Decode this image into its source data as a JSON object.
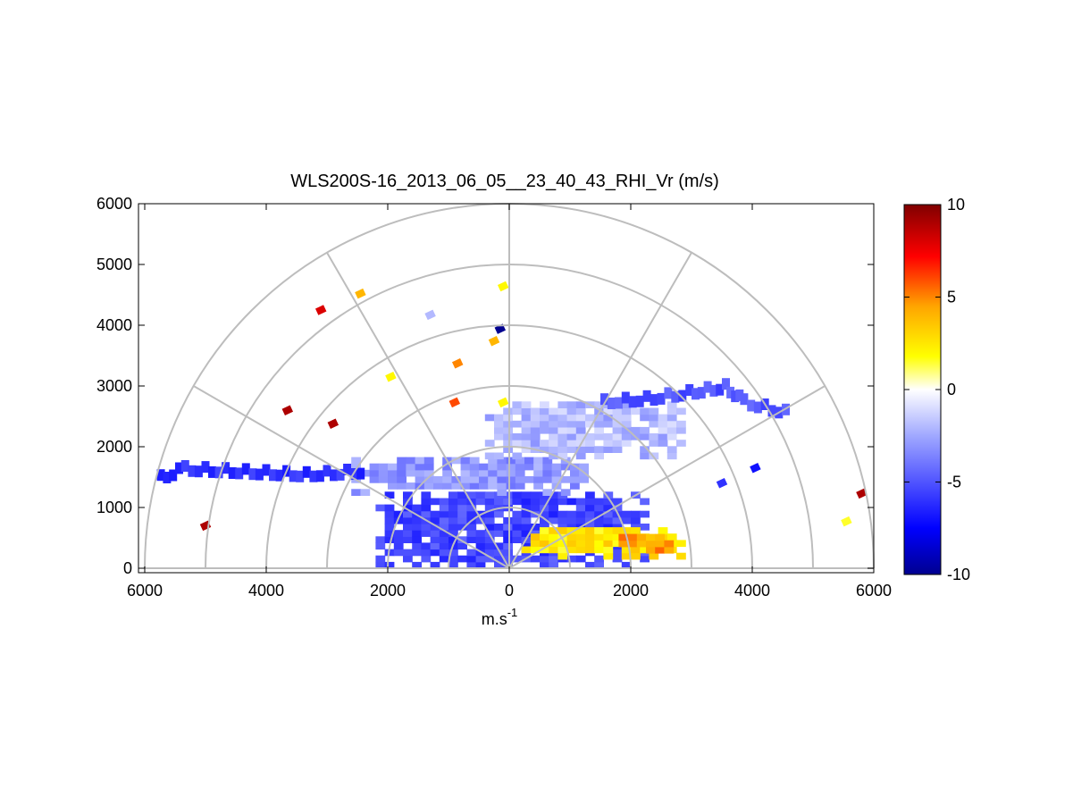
{
  "chart_data": {
    "type": "heatmap",
    "projection": "polar-half (RHI scan)",
    "title": "WLS200S-16_2013_06_05__23_40_43_RHI_Vr (m/s)",
    "xlabel": "m.s",
    "xlabel_superscript": "-1",
    "ylabel": "",
    "xlim": [
      -6000,
      6000
    ],
    "ylim": [
      0,
      6000
    ],
    "x_tick_labels": [
      "6000",
      "4000",
      "2000",
      "0",
      "2000",
      "4000",
      "6000"
    ],
    "x_tick_values": [
      -6000,
      -4000,
      -2000,
      0,
      2000,
      4000,
      6000
    ],
    "y_tick_labels": [
      "0",
      "1000",
      "2000",
      "3000",
      "4000",
      "5000",
      "6000"
    ],
    "y_tick_values": [
      0,
      1000,
      2000,
      3000,
      4000,
      5000,
      6000
    ],
    "polar_grid": {
      "range_rings": [
        1000,
        2000,
        3000,
        4000,
        5000,
        6000
      ],
      "spokes_deg": [
        0,
        30,
        60,
        90,
        120,
        150,
        180
      ]
    },
    "grid": true,
    "colorbar": {
      "min": -10,
      "max": 10,
      "tick_labels": [
        "10",
        "5",
        "0",
        "-5",
        "-10"
      ],
      "tick_values": [
        10,
        5,
        0,
        -5,
        -10
      ],
      "colormap": [
        "#00008f",
        "#0000ff",
        "#a0a8ff",
        "#ffffff",
        "#ffff00",
        "#ffa500",
        "#ff0000",
        "#800000"
      ]
    },
    "regions": [
      {
        "name": "near-field blue core",
        "x_range": [
          -2200,
          2200
        ],
        "y_range": [
          0,
          1200
        ],
        "value": -5.5
      },
      {
        "name": "mid-level light blue layer",
        "x_range": [
          -2600,
          1200
        ],
        "y_range": [
          1200,
          1800
        ],
        "value": -3
      },
      {
        "name": "upper light blue layer",
        "x_range": [
          -400,
          2800
        ],
        "y_range": [
          1800,
          2700
        ],
        "value": -2
      },
      {
        "name": "near-field east positive layer",
        "x_range": [
          200,
          2800
        ],
        "y_range": [
          150,
          600
        ],
        "value": 2.5
      },
      {
        "name": "east orange patch",
        "x_range": [
          1800,
          2600
        ],
        "y_range": [
          250,
          500
        ],
        "value": 4.5
      }
    ],
    "features": [
      {
        "name": "west aerosol layer edge",
        "points": [
          [
            -5800,
            1450
          ],
          [
            -5400,
            1600
          ],
          [
            -4400,
            1550
          ],
          [
            -3400,
            1500
          ],
          [
            -2400,
            1560
          ]
        ],
        "value": -6
      },
      {
        "name": "east aerosol layer edge",
        "points": [
          [
            1500,
            2700
          ],
          [
            2200,
            2750
          ],
          [
            2900,
            2850
          ],
          [
            3500,
            2950
          ],
          [
            3800,
            2700
          ],
          [
            4600,
            2500
          ]
        ],
        "value": -5
      }
    ],
    "scattered_cells": [
      {
        "x": -3100,
        "y": 4250,
        "value": 8
      },
      {
        "x": -2450,
        "y": 4520,
        "value": 4
      },
      {
        "x": -1300,
        "y": 4170,
        "value": -2
      },
      {
        "x": -100,
        "y": 4640,
        "value": 2
      },
      {
        "x": -150,
        "y": 3940,
        "value": -10
      },
      {
        "x": -250,
        "y": 3740,
        "value": 4
      },
      {
        "x": -850,
        "y": 3370,
        "value": 5
      },
      {
        "x": -1950,
        "y": 3150,
        "value": 2
      },
      {
        "x": -3650,
        "y": 2600,
        "value": 9
      },
      {
        "x": -2900,
        "y": 2380,
        "value": 9
      },
      {
        "x": -900,
        "y": 2730,
        "value": 6
      },
      {
        "x": -100,
        "y": 2730,
        "value": 2
      },
      {
        "x": -5000,
        "y": 700,
        "value": 9
      },
      {
        "x": 5800,
        "y": 1230,
        "value": 9
      },
      {
        "x": 5550,
        "y": 770,
        "value": 1.5
      },
      {
        "x": 3500,
        "y": 1400,
        "value": -6
      },
      {
        "x": 4050,
        "y": 1650,
        "value": -7
      }
    ]
  }
}
